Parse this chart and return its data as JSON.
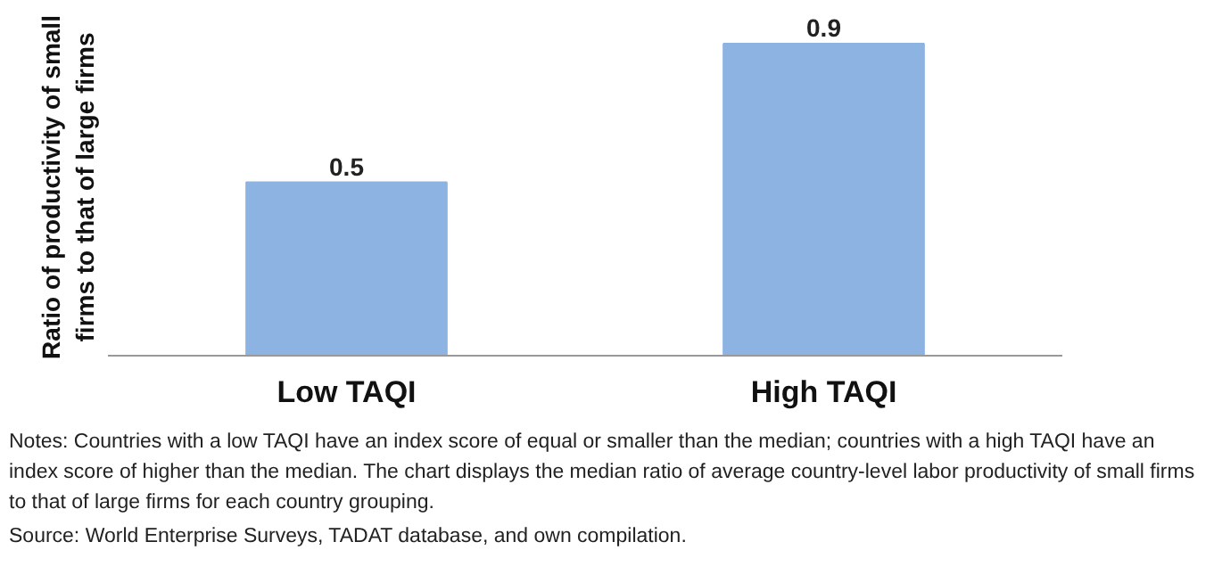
{
  "chart_data": {
    "type": "bar",
    "ylabel": "Ratio of productivity of small firms to that of large firms",
    "categories": [
      "Low TAQI",
      "High TAQI"
    ],
    "values": [
      0.5,
      0.9
    ],
    "color": "#8db3e2",
    "tick_labels": "x",
    "data_labels": true,
    "grid": false,
    "annotations": [
      "Notes: Countries with a low TAQI have an index score of equal or smaller than the median; countries with a high TAQI have an index score of higher than the median. The chart displays the median ratio of average country-level labor productivity of small firms to that of large firms for each country grouping.",
      "Source: World Enterprise Surveys, TADAT database, and own compilation."
    ]
  }
}
